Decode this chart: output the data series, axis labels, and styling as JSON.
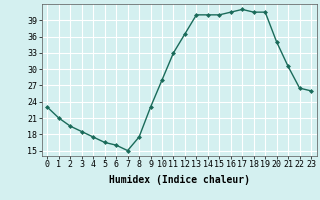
{
  "x": [
    0,
    1,
    2,
    3,
    4,
    5,
    6,
    7,
    8,
    9,
    10,
    11,
    12,
    13,
    14,
    15,
    16,
    17,
    18,
    19,
    20,
    21,
    22,
    23
  ],
  "y": [
    23,
    21,
    19.5,
    18.5,
    17.5,
    16.5,
    16,
    15,
    17.5,
    23,
    28,
    33,
    36.5,
    40,
    40,
    40,
    40.5,
    41,
    40.5,
    40.5,
    35,
    30.5,
    26.5,
    26
  ],
  "line_color": "#1a6b5a",
  "marker": "D",
  "marker_size": 2,
  "bg_color": "#d4f0f0",
  "grid_color": "#ffffff",
  "xlabel": "Humidex (Indice chaleur)",
  "xlabel_fontsize": 7,
  "yticks": [
    15,
    18,
    21,
    24,
    27,
    30,
    33,
    36,
    39
  ],
  "xticks": [
    0,
    1,
    2,
    3,
    4,
    5,
    6,
    7,
    8,
    9,
    10,
    11,
    12,
    13,
    14,
    15,
    16,
    17,
    18,
    19,
    20,
    21,
    22,
    23
  ],
  "xlim": [
    -0.5,
    23.5
  ],
  "ylim": [
    14,
    42
  ],
  "tick_fontsize": 6,
  "linewidth": 1.0
}
